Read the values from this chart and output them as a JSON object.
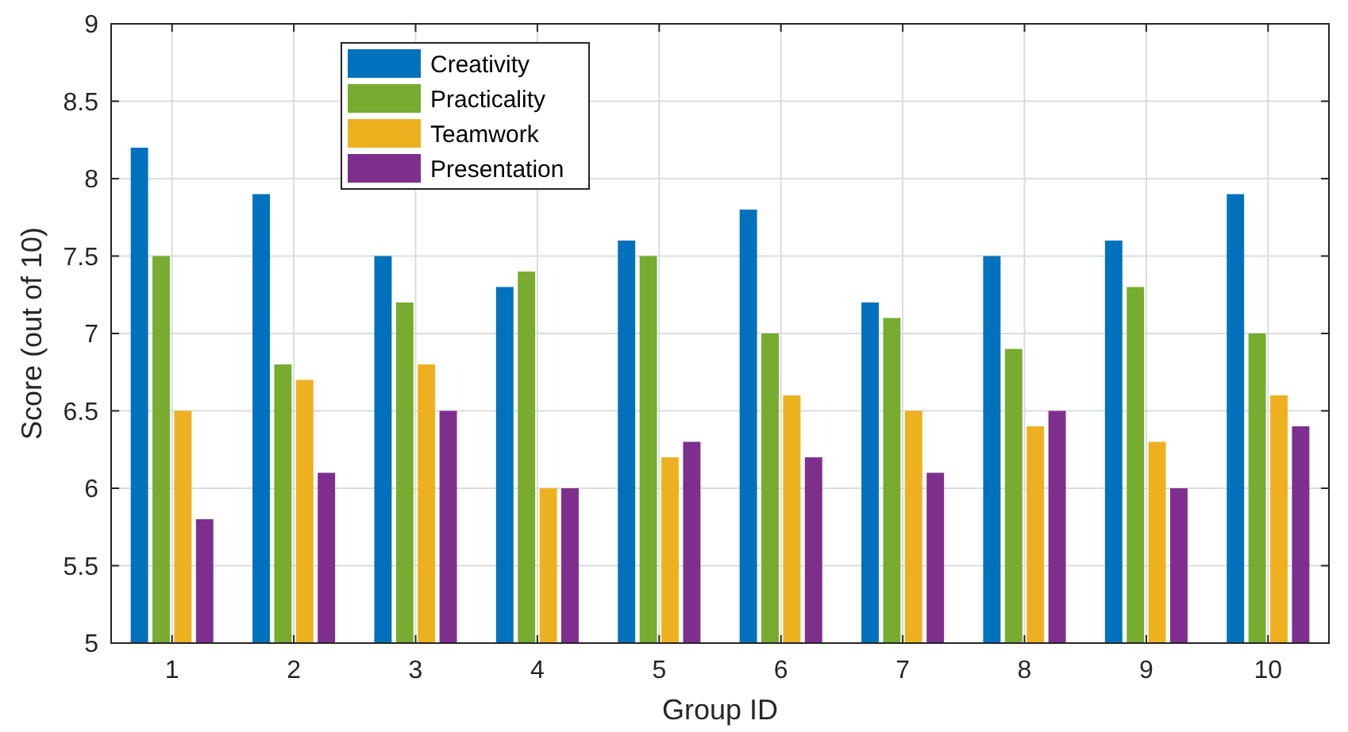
{
  "chart_data": {
    "type": "bar",
    "xlabel": "Group ID",
    "ylabel": "Score (out of 10)",
    "categories": [
      "1",
      "2",
      "3",
      "4",
      "5",
      "6",
      "7",
      "8",
      "9",
      "10"
    ],
    "series": [
      {
        "name": "Creativity",
        "color": "#0072bd",
        "values": [
          8.2,
          7.9,
          7.5,
          7.3,
          7.6,
          7.8,
          7.2,
          7.5,
          7.6,
          7.9
        ]
      },
      {
        "name": "Practicality",
        "color": "#77ac30",
        "values": [
          7.5,
          6.8,
          7.2,
          7.4,
          7.5,
          7.0,
          7.1,
          6.9,
          7.3,
          7.0
        ]
      },
      {
        "name": "Teamwork",
        "color": "#edb120",
        "values": [
          6.5,
          6.7,
          6.8,
          6.0,
          6.2,
          6.6,
          6.5,
          6.4,
          6.3,
          6.6
        ]
      },
      {
        "name": "Presentation",
        "color": "#7e2f8e",
        "values": [
          5.8,
          6.1,
          6.5,
          6.0,
          6.3,
          6.2,
          6.1,
          6.5,
          6.0,
          6.4
        ]
      }
    ],
    "ylim": [
      5,
      9
    ],
    "yticks": [
      5,
      5.5,
      6,
      6.5,
      7,
      7.5,
      8,
      8.5,
      9
    ],
    "grid": true,
    "legend": "top left"
  }
}
